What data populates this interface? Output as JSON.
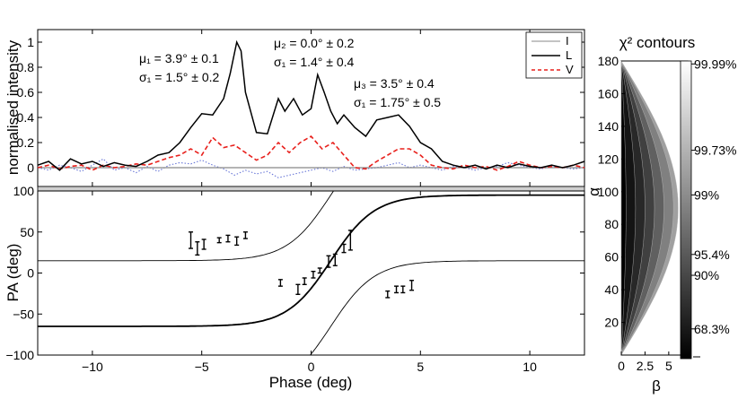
{
  "chart_data": [
    {
      "type": "line",
      "panel": "profile",
      "ylabel": "normalised intensity",
      "xlim": [
        -12.5,
        12.5
      ],
      "ylim": [
        -0.15,
        1.1
      ],
      "yticks": [
        "0",
        "0.2",
        "0.4",
        "0.6",
        "0.8",
        "1"
      ],
      "legend": {
        "position": "top-right",
        "entries": [
          "I",
          "L",
          "V"
        ]
      },
      "annotations": [
        {
          "l1": "μ₁ = 3.9° ± 0.1",
          "l2": "σ₁ = 1.5° ± 0.2"
        },
        {
          "l1": "μ₂ = 0.0° ± 0.2",
          "l2": "σ₁ = 1.4° ± 0.4"
        },
        {
          "l1": "μ₃ = 3.5° ± 0.4",
          "l2": "σ₁ = 1.75° ± 0.5"
        }
      ],
      "series": [
        {
          "name": "I",
          "color": "#888888",
          "note": "flat at zero",
          "x": [
            -12.5,
            12.5
          ],
          "y": [
            0,
            0
          ]
        },
        {
          "name": "L",
          "color": "#000000",
          "x": [
            -12.5,
            -12,
            -11.5,
            -11,
            -10.5,
            -10,
            -9.5,
            -9,
            -8.5,
            -8,
            -7.5,
            -7,
            -6.5,
            -6,
            -5.5,
            -5,
            -4.5,
            -4,
            -3.7,
            -3.4,
            -3.2,
            -3,
            -2.5,
            -2,
            -1.5,
            -1.2,
            -0.8,
            -0.4,
            0,
            0.3,
            0.6,
            0.9,
            1.2,
            1.5,
            2,
            2.5,
            3,
            3.5,
            4,
            4.5,
            5,
            5.5,
            6,
            6.5,
            7,
            7.5,
            8,
            8.5,
            9,
            9.5,
            10,
            10.5,
            11,
            11.5,
            12,
            12.5
          ],
          "y": [
            0.02,
            0.05,
            -0.02,
            0.07,
            0.03,
            0.05,
            0.01,
            0.04,
            0.02,
            0.01,
            0.05,
            0.1,
            0.12,
            0.2,
            0.32,
            0.43,
            0.42,
            0.55,
            0.75,
            1.0,
            0.93,
            0.6,
            0.28,
            0.27,
            0.55,
            0.45,
            0.55,
            0.42,
            0.47,
            0.74,
            0.6,
            0.45,
            0.35,
            0.42,
            0.32,
            0.25,
            0.38,
            0.4,
            0.42,
            0.33,
            0.2,
            0.15,
            0.05,
            0.02,
            0.0,
            0.02,
            -0.01,
            0.02,
            0.0,
            0.03,
            0.01,
            0.0,
            0.02,
            0.0,
            0.02,
            0.05
          ]
        },
        {
          "name": "V",
          "color": "#e8201c",
          "x": [
            -12.5,
            -12,
            -11.5,
            -11,
            -10.5,
            -10,
            -9.5,
            -9,
            -8.5,
            -8,
            -7.5,
            -7,
            -6.5,
            -6,
            -5.5,
            -5,
            -4.5,
            -4,
            -3.5,
            -3,
            -2.5,
            -2,
            -1.5,
            -1,
            -0.5,
            0,
            0.5,
            1,
            1.5,
            2,
            2.5,
            3,
            3.5,
            4,
            4.5,
            5,
            5.5,
            6,
            6.5,
            7,
            7.5,
            8,
            8.5,
            9,
            9.5,
            10,
            10.5,
            11,
            11.5,
            12,
            12.5
          ],
          "y": [
            0.0,
            0.02,
            -0.01,
            0.01,
            0.02,
            -0.02,
            0.02,
            0.0,
            0.01,
            0.03,
            0.02,
            0.05,
            0.08,
            0.1,
            0.15,
            0.1,
            0.24,
            0.16,
            0.18,
            0.12,
            0.06,
            0.1,
            0.2,
            0.12,
            0.2,
            0.25,
            0.15,
            0.2,
            0.1,
            0.0,
            -0.01,
            0.05,
            0.1,
            0.15,
            0.15,
            0.1,
            0.02,
            0.0,
            -0.01,
            0.02,
            0.0,
            0.01,
            -0.02,
            0.01,
            0.05,
            0.02,
            0.0,
            0.01,
            0.0,
            0.02,
            0.0
          ]
        },
        {
          "name": "dotted",
          "color": "#6a78d8",
          "x": [
            -12.5,
            -12,
            -11.5,
            -11,
            -10.5,
            -10,
            -9.5,
            -9,
            -8.5,
            -8,
            -7.5,
            -7,
            -6.5,
            -6,
            -5.5,
            -5,
            -4.5,
            -4,
            -3.5,
            -3,
            -2.5,
            -2,
            -1.5,
            -1,
            -0.5,
            0,
            0.5,
            1,
            1.5,
            2,
            2.5,
            3,
            3.5,
            4,
            4.5,
            5,
            5.5,
            6,
            6.5,
            7,
            7.5,
            8,
            8.5,
            9,
            9.5,
            10,
            10.5,
            11,
            11.5,
            12,
            12.5
          ],
          "y": [
            0.0,
            -0.02,
            0.02,
            0.0,
            -0.03,
            0.02,
            0.07,
            -0.02,
            0.0,
            -0.04,
            0.01,
            -0.03,
            0.02,
            0.04,
            0.03,
            0.06,
            0.02,
            -0.01,
            -0.06,
            -0.02,
            -0.05,
            -0.03,
            -0.08,
            -0.06,
            -0.04,
            -0.02,
            0.0,
            -0.03,
            0.01,
            -0.02,
            -0.01,
            0.0,
            0.02,
            0.04,
            0.0,
            0.02,
            0.0,
            -0.02,
            0.01,
            0.0,
            -0.02,
            0.0,
            0.01,
            0.04,
            0.02,
            0.0,
            -0.01,
            0.01,
            0.0,
            -0.01,
            0.0
          ]
        }
      ]
    },
    {
      "type": "scatter",
      "panel": "position-angle",
      "xlabel": "Phase (deg)",
      "ylabel": "PA (deg)",
      "xlim": [
        -12.5,
        12.5
      ],
      "ylim": [
        -100,
        100
      ],
      "xticks": [
        -10,
        -5,
        0,
        5,
        10
      ],
      "xtick_labels": [
        "−10",
        "−5",
        "0",
        "5",
        "10"
      ],
      "yticks": [
        -100,
        -50,
        0,
        50,
        100
      ],
      "ytick_labels": [
        "−100",
        "−50",
        "0",
        "50",
        "100"
      ],
      "points": [
        {
          "x": -5.5,
          "y": 40,
          "err": 10
        },
        {
          "x": -5.2,
          "y": 30,
          "err": 8
        },
        {
          "x": -4.9,
          "y": 35,
          "err": 6
        },
        {
          "x": -4.2,
          "y": 40,
          "err": 3
        },
        {
          "x": -3.8,
          "y": 42,
          "err": 4
        },
        {
          "x": -3.4,
          "y": 39,
          "err": 5
        },
        {
          "x": -3.0,
          "y": 46,
          "err": 4
        },
        {
          "x": -1.4,
          "y": -12,
          "err": 4
        },
        {
          "x": -0.6,
          "y": -20,
          "err": 6
        },
        {
          "x": -0.3,
          "y": -10,
          "err": 4
        },
        {
          "x": 0.1,
          "y": -2,
          "err": 4
        },
        {
          "x": 0.4,
          "y": 3,
          "err": 3
        },
        {
          "x": 0.8,
          "y": 14,
          "err": 7
        },
        {
          "x": 1.1,
          "y": 16,
          "err": 7
        },
        {
          "x": 1.5,
          "y": 30,
          "err": 5
        },
        {
          "x": 1.8,
          "y": 40,
          "err": 12
        },
        {
          "x": 3.5,
          "y": -26,
          "err": 4
        },
        {
          "x": 3.9,
          "y": -20,
          "err": 4
        },
        {
          "x": 4.2,
          "y": -20,
          "err": 4
        },
        {
          "x": 4.6,
          "y": -15,
          "err": 6
        }
      ],
      "rvm_curves": [
        {
          "name": "main",
          "offset": 0,
          "stroke": "thick"
        },
        {
          "name": "upper",
          "offset": 180,
          "stroke": "thin"
        },
        {
          "name": "lower",
          "offset": -180,
          "stroke": "thin"
        }
      ]
    },
    {
      "type": "heatmap",
      "panel": "chi2",
      "title": "χ² contours",
      "xlabel": "β",
      "ylabel": "α",
      "xlim": [
        0,
        7
      ],
      "ylim": [
        0,
        180
      ],
      "xticks": [
        "0",
        "2.5",
        "5"
      ],
      "yticks": [
        "20",
        "40",
        "60",
        "80",
        "100",
        "120",
        "140",
        "160",
        "180"
      ],
      "colorbar_labels": [
        "99.99%",
        "99.73%",
        "99%",
        "95.4%",
        "90%",
        "68.3%"
      ],
      "colorbar_levels": [
        0.99,
        0.7,
        0.55,
        0.35,
        0.28,
        0.1
      ],
      "contour_extents": [
        0.5,
        1.5,
        2.5,
        3.5,
        4.5,
        5.5,
        6.0
      ]
    }
  ]
}
